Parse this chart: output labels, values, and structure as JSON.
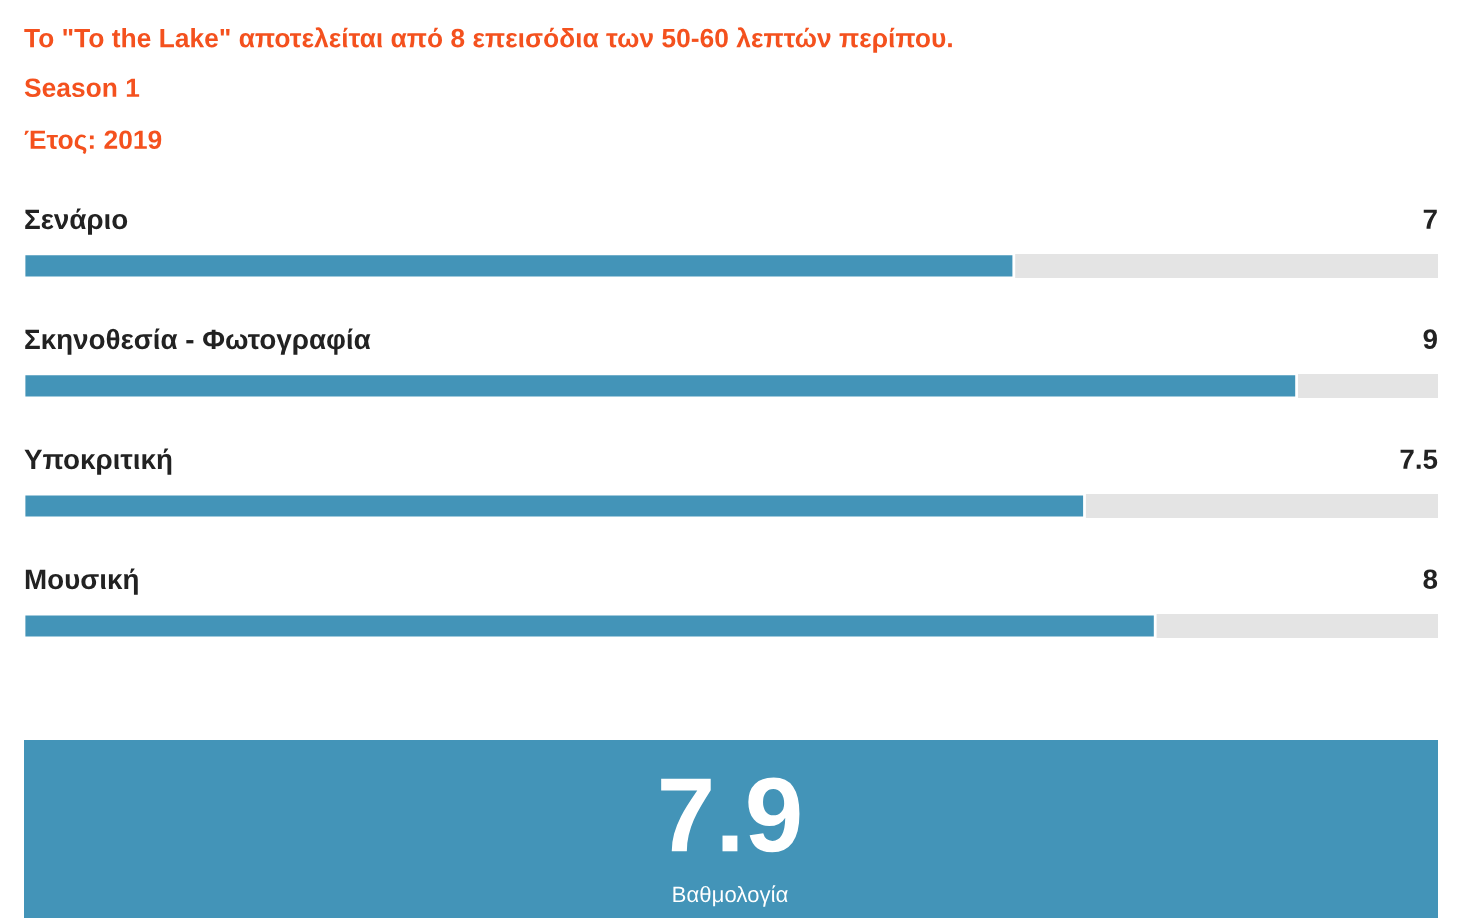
{
  "chart_data": {
    "type": "bar",
    "orientation": "horizontal",
    "title": "Το \"To the Lake\" αποτελείται από 8 επεισόδια των 50-60 λεπτών περίπου.",
    "subtitle": "Season 1",
    "categories": [
      "Σενάριο",
      "Σκηνοθεσία - Φωτογραφία",
      "Υποκριτική",
      "Μουσική"
    ],
    "values": [
      7,
      9,
      7.5,
      8
    ],
    "color": "#4394b8",
    "xlim": [
      0,
      10
    ],
    "data_labels": true,
    "annotations": [
      "Έτος: 2019",
      "7.9",
      "Βαθμολογία"
    ]
  }
}
